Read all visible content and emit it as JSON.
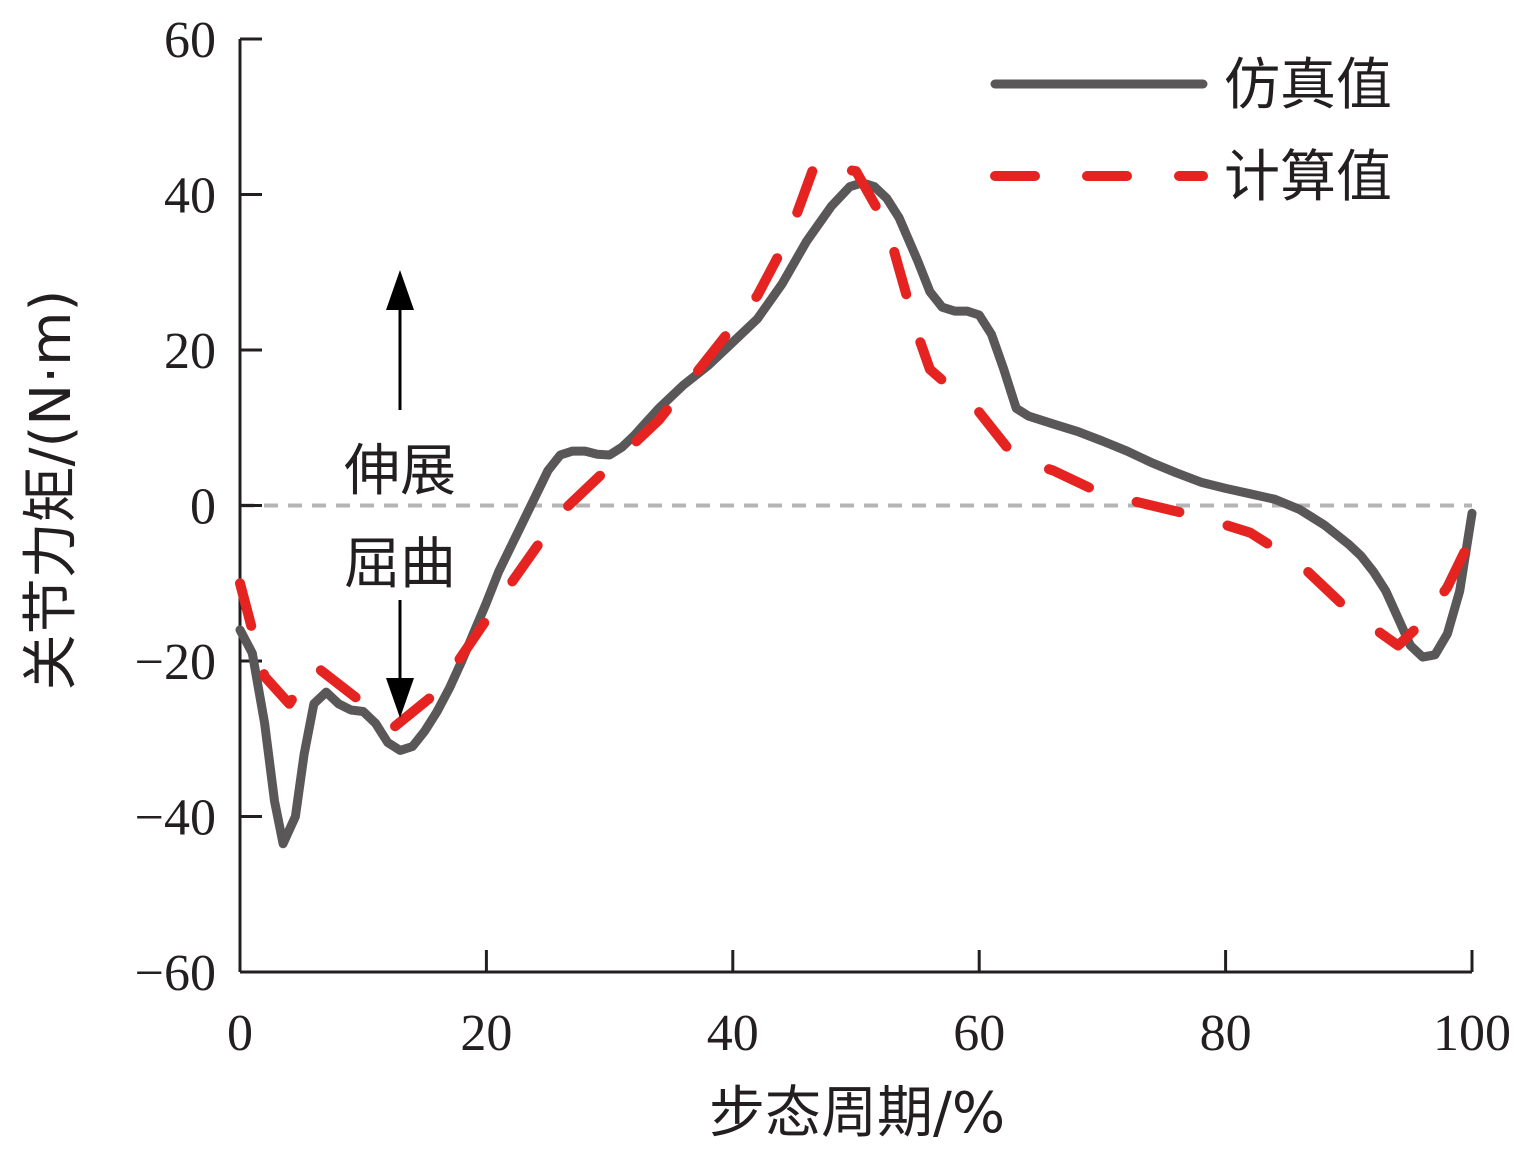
{
  "chart_data": {
    "type": "line",
    "title": "",
    "xlabel": "步态周期/%",
    "ylabel": "关节力矩/(N·m)",
    "xlim": [
      0,
      100
    ],
    "ylim": [
      -60,
      60
    ],
    "x_ticks": [
      0,
      20,
      40,
      60,
      80,
      100
    ],
    "y_ticks": [
      60,
      40,
      20,
      0,
      -20,
      -40,
      -60
    ],
    "x_tick_labels": [
      "0",
      "20",
      "40",
      "60",
      "80",
      "100"
    ],
    "y_tick_labels": [
      "60",
      "40",
      "20",
      "0",
      "−20",
      "−40",
      "−60"
    ],
    "grid": false,
    "zero_reference_line": true,
    "legend_position": "top-right",
    "annotations": [
      {
        "text": "伸展",
        "arrow": "up",
        "x": 13,
        "y": 5
      },
      {
        "text": "屈曲",
        "arrow": "down",
        "x": 13,
        "y": -10
      }
    ],
    "series": [
      {
        "name": "仿真值",
        "color": "#595757",
        "style": "solid",
        "points": [
          [
            0,
            -16
          ],
          [
            1,
            -19
          ],
          [
            2,
            -28
          ],
          [
            2.8,
            -38
          ],
          [
            3.5,
            -43.5
          ],
          [
            4.5,
            -40
          ],
          [
            5.2,
            -32
          ],
          [
            6,
            -25.5
          ],
          [
            7,
            -24
          ],
          [
            8,
            -25.5
          ],
          [
            9,
            -26.3
          ],
          [
            10,
            -26.5
          ],
          [
            11,
            -28
          ],
          [
            12,
            -30.5
          ],
          [
            13,
            -31.5
          ],
          [
            14,
            -31
          ],
          [
            15,
            -29
          ],
          [
            16,
            -26.5
          ],
          [
            17,
            -23.5
          ],
          [
            18,
            -20
          ],
          [
            20,
            -12.5
          ],
          [
            21,
            -8.5
          ],
          [
            23,
            -2
          ],
          [
            25,
            4.5
          ],
          [
            26,
            6.5
          ],
          [
            27,
            7
          ],
          [
            28,
            7
          ],
          [
            29,
            6.6
          ],
          [
            30,
            6.5
          ],
          [
            31,
            7.5
          ],
          [
            32,
            9
          ],
          [
            34,
            12.5
          ],
          [
            36,
            15.5
          ],
          [
            38,
            18
          ],
          [
            40,
            21
          ],
          [
            42,
            24
          ],
          [
            44,
            28.5
          ],
          [
            46,
            34
          ],
          [
            48,
            38.5
          ],
          [
            49.5,
            41
          ],
          [
            50.5,
            41.5
          ],
          [
            51.5,
            41
          ],
          [
            52.5,
            39.5
          ],
          [
            53.5,
            37
          ],
          [
            55,
            31.5
          ],
          [
            56,
            27.5
          ],
          [
            57,
            25.5
          ],
          [
            58,
            25
          ],
          [
            59,
            25
          ],
          [
            60,
            24.5
          ],
          [
            61,
            22
          ],
          [
            62,
            17.5
          ],
          [
            63,
            12.5
          ],
          [
            64,
            11.5
          ],
          [
            66,
            10.5
          ],
          [
            68,
            9.5
          ],
          [
            70,
            8.3
          ],
          [
            72,
            7
          ],
          [
            74,
            5.5
          ],
          [
            76,
            4.2
          ],
          [
            78,
            3
          ],
          [
            80,
            2.2
          ],
          [
            82,
            1.5
          ],
          [
            84,
            0.8
          ],
          [
            86,
            -0.5
          ],
          [
            88,
            -2.5
          ],
          [
            90,
            -5
          ],
          [
            91,
            -6.5
          ],
          [
            92,
            -8.5
          ],
          [
            93,
            -11
          ],
          [
            94,
            -14.5
          ],
          [
            95,
            -18
          ],
          [
            96,
            -19.5
          ],
          [
            97,
            -19.2
          ],
          [
            98,
            -16.5
          ],
          [
            99,
            -11
          ],
          [
            100,
            -1
          ]
        ]
      },
      {
        "name": "计算值",
        "color": "#e52421",
        "style": "dashed",
        "points": [
          [
            0,
            -10
          ],
          [
            2,
            -22
          ],
          [
            4,
            -25.5
          ],
          [
            6,
            -20.5
          ],
          [
            12.5,
            -28.5
          ],
          [
            16,
            -24
          ],
          [
            19,
            -17
          ],
          [
            22,
            -10
          ],
          [
            26,
            -1
          ],
          [
            30,
            5
          ],
          [
            34,
            11
          ],
          [
            38,
            19
          ],
          [
            42,
            27
          ],
          [
            44.5,
            34.5
          ],
          [
            46.8,
            44.5
          ],
          [
            48,
            43.5
          ],
          [
            50,
            43
          ],
          [
            52.5,
            36
          ],
          [
            55,
            22
          ],
          [
            56,
            17.5
          ],
          [
            60,
            12
          ],
          [
            63,
            6
          ],
          [
            66,
            4.5
          ],
          [
            70,
            1.5
          ],
          [
            74,
            0
          ],
          [
            78,
            -1.5
          ],
          [
            82,
            -3.5
          ],
          [
            86,
            -7.5
          ],
          [
            90,
            -13.5
          ],
          [
            94,
            -18
          ],
          [
            96,
            -15
          ],
          [
            98,
            -10.5
          ],
          [
            100,
            -4
          ]
        ]
      }
    ]
  }
}
